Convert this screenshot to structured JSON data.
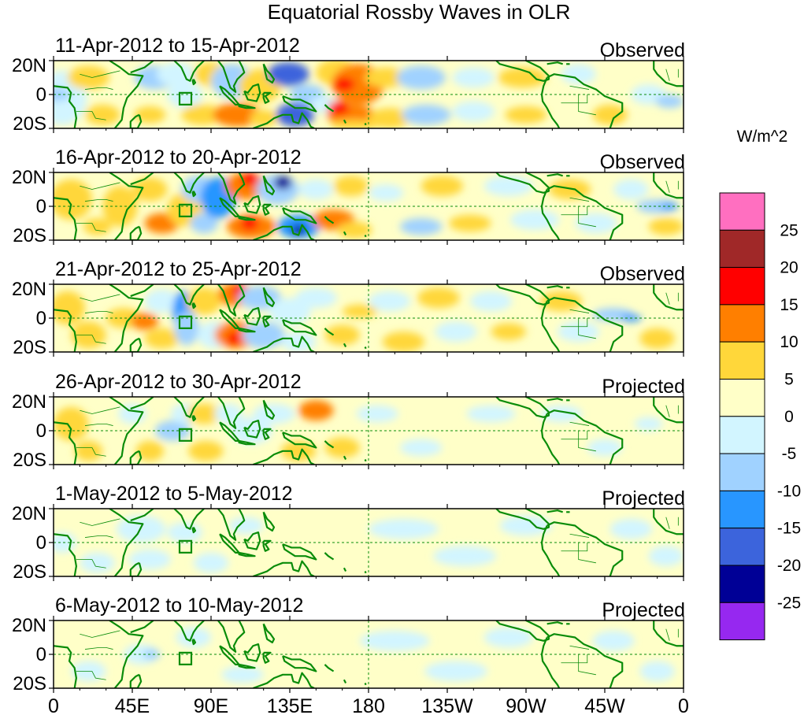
{
  "title": "Equatorial Rossby Waves in OLR",
  "colorbar": {
    "unit": "W/m^2",
    "labels": [
      "25",
      "20",
      "15",
      "10",
      "5",
      "0",
      "-5",
      "-10",
      "-15",
      "-20",
      "-25"
    ],
    "colors": [
      "#ff6fc0",
      "#a02828",
      "#ff0000",
      "#ff7f00",
      "#ffd73a",
      "#ffffc8",
      "#d2f5ff",
      "#a0d2ff",
      "#2896ff",
      "#3c64dc",
      "#000096",
      "#9628f0"
    ]
  },
  "axes": {
    "y_ticks": [
      "20N",
      "0",
      "20S"
    ],
    "x_ticks": [
      "0",
      "45E",
      "90E",
      "135E",
      "180",
      "135W",
      "90W",
      "45W",
      "0"
    ]
  },
  "panels": [
    {
      "date": "11-Apr-2012 to 15-Apr-2012",
      "label": "Observed"
    },
    {
      "date": "16-Apr-2012 to 20-Apr-2012",
      "label": "Observed"
    },
    {
      "date": "21-Apr-2012 to 25-Apr-2012",
      "label": "Observed"
    },
    {
      "date": "26-Apr-2012 to 30-Apr-2012",
      "label": "Projected"
    },
    {
      "date": "1-May-2012 to 5-May-2012",
      "label": "Projected"
    },
    {
      "date": "6-May-2012 to 10-May-2012",
      "label": "Projected"
    }
  ],
  "colors": {
    "coastline": "#0a8c0a",
    "frame": "#000000",
    "guide": "#0a8c0a"
  }
}
